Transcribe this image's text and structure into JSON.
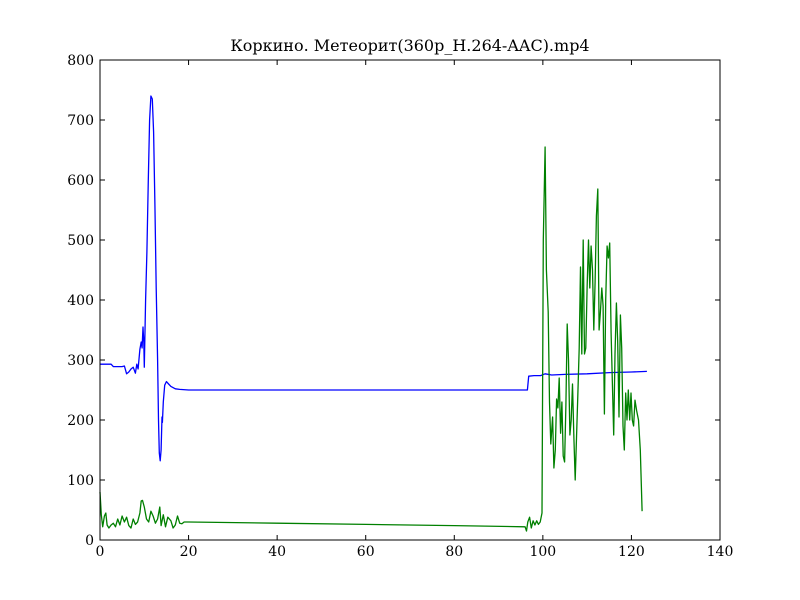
{
  "chart_data": {
    "type": "line",
    "title": "Коркино. Метеорит(360p_H.264-AAC).mp4",
    "xlabel": "",
    "ylabel": "",
    "xlim": [
      0,
      140
    ],
    "ylim": [
      0,
      800
    ],
    "x_ticks": [
      0,
      20,
      40,
      60,
      80,
      100,
      120,
      140
    ],
    "y_ticks": [
      0,
      100,
      200,
      300,
      400,
      500,
      600,
      700,
      800
    ],
    "grid": false,
    "legend": "none",
    "series": [
      {
        "color": "#0000ff",
        "points": [
          [
            0,
            293
          ],
          [
            2.5,
            293
          ],
          [
            3,
            289
          ],
          [
            5,
            289
          ],
          [
            5.5,
            290
          ],
          [
            6,
            277
          ],
          [
            6.5,
            280
          ],
          [
            7,
            285
          ],
          [
            7.5,
            288
          ],
          [
            8,
            278
          ],
          [
            8.3,
            293
          ],
          [
            8.6,
            285
          ],
          [
            9,
            318
          ],
          [
            9.3,
            330
          ],
          [
            9.5,
            320
          ],
          [
            9.7,
            355
          ],
          [
            9.9,
            330
          ],
          [
            10,
            288
          ],
          [
            10.3,
            400
          ],
          [
            10.6,
            480
          ],
          [
            10.9,
            600
          ],
          [
            11.2,
            700
          ],
          [
            11.5,
            740
          ],
          [
            11.8,
            735
          ],
          [
            12.1,
            680
          ],
          [
            12.4,
            560
          ],
          [
            12.7,
            420
          ],
          [
            13,
            300
          ],
          [
            13.2,
            200
          ],
          [
            13.4,
            145
          ],
          [
            13.6,
            132
          ],
          [
            13.8,
            150
          ],
          [
            14,
            205
          ],
          [
            14.1,
            196
          ],
          [
            14.3,
            230
          ],
          [
            14.6,
            258
          ],
          [
            15,
            264
          ],
          [
            15.5,
            260
          ],
          [
            16,
            256
          ],
          [
            17,
            252
          ],
          [
            18,
            251
          ],
          [
            20,
            250
          ],
          [
            40,
            250
          ],
          [
            60,
            250
          ],
          [
            80,
            250
          ],
          [
            96.5,
            250
          ],
          [
            96.8,
            273
          ],
          [
            98,
            274
          ],
          [
            99.5,
            274
          ],
          [
            100.5,
            277
          ],
          [
            102,
            275
          ],
          [
            105,
            276
          ],
          [
            110,
            277
          ],
          [
            115,
            279
          ],
          [
            120,
            280
          ],
          [
            123.5,
            281
          ]
        ]
      },
      {
        "color": "#008000",
        "points": [
          [
            0,
            80
          ],
          [
            0.3,
            42
          ],
          [
            0.6,
            22
          ],
          [
            1,
            40
          ],
          [
            1.3,
            45
          ],
          [
            1.6,
            25
          ],
          [
            2,
            20
          ],
          [
            2.5,
            25
          ],
          [
            3,
            28
          ],
          [
            3.5,
            22
          ],
          [
            4,
            35
          ],
          [
            4.5,
            25
          ],
          [
            5,
            40
          ],
          [
            5.5,
            30
          ],
          [
            6,
            38
          ],
          [
            6.5,
            24
          ],
          [
            7,
            20
          ],
          [
            7.5,
            35
          ],
          [
            8,
            26
          ],
          [
            8.5,
            30
          ],
          [
            9,
            45
          ],
          [
            9.3,
            65
          ],
          [
            9.6,
            66
          ],
          [
            10,
            55
          ],
          [
            10.5,
            35
          ],
          [
            11,
            30
          ],
          [
            11.5,
            48
          ],
          [
            12,
            40
          ],
          [
            12.5,
            28
          ],
          [
            13,
            35
          ],
          [
            13.5,
            55
          ],
          [
            13.8,
            24
          ],
          [
            14.3,
            42
          ],
          [
            14.8,
            22
          ],
          [
            15.3,
            38
          ],
          [
            16,
            32
          ],
          [
            16.5,
            20
          ],
          [
            17,
            25
          ],
          [
            17.5,
            40
          ],
          [
            18,
            28
          ],
          [
            18.5,
            27
          ],
          [
            19,
            30
          ],
          [
            20,
            30
          ],
          [
            40,
            28
          ],
          [
            60,
            26
          ],
          [
            80,
            24
          ],
          [
            96,
            22
          ],
          [
            96.3,
            15
          ],
          [
            96.6,
            30
          ],
          [
            97,
            38
          ],
          [
            97.4,
            20
          ],
          [
            97.8,
            32
          ],
          [
            98.2,
            25
          ],
          [
            98.6,
            32
          ],
          [
            99,
            26
          ],
          [
            99.4,
            30
          ],
          [
            99.8,
            45
          ],
          [
            100.1,
            500
          ],
          [
            100.5,
            655
          ],
          [
            100.8,
            450
          ],
          [
            101.2,
            380
          ],
          [
            101.5,
            230
          ],
          [
            101.8,
            160
          ],
          [
            102.2,
            205
          ],
          [
            102.5,
            120
          ],
          [
            102.8,
            150
          ],
          [
            103.1,
            235
          ],
          [
            103.4,
            220
          ],
          [
            103.7,
            270
          ],
          [
            104,
            178
          ],
          [
            104.3,
            230
          ],
          [
            104.6,
            140
          ],
          [
            104.9,
            130
          ],
          [
            105.2,
            225
          ],
          [
            105.5,
            360
          ],
          [
            105.8,
            300
          ],
          [
            106.1,
            175
          ],
          [
            106.4,
            200
          ],
          [
            106.7,
            260
          ],
          [
            107,
            170
          ],
          [
            107.3,
            100
          ],
          [
            107.6,
            170
          ],
          [
            107.9,
            240
          ],
          [
            108.2,
            320
          ],
          [
            108.5,
            455
          ],
          [
            108.8,
            310
          ],
          [
            109.1,
            500
          ],
          [
            109.4,
            310
          ],
          [
            109.7,
            320
          ],
          [
            110,
            420
          ],
          [
            110.3,
            500
          ],
          [
            110.6,
            420
          ],
          [
            110.9,
            490
          ],
          [
            111.2,
            450
          ],
          [
            111.5,
            350
          ],
          [
            111.8,
            430
          ],
          [
            112.1,
            540
          ],
          [
            112.4,
            585
          ],
          [
            112.7,
            350
          ],
          [
            113,
            380
          ],
          [
            113.3,
            420
          ],
          [
            113.6,
            390
          ],
          [
            113.9,
            210
          ],
          [
            114.2,
            400
          ],
          [
            114.5,
            490
          ],
          [
            114.8,
            470
          ],
          [
            115.1,
            495
          ],
          [
            115.4,
            345
          ],
          [
            115.7,
            260
          ],
          [
            116,
            175
          ],
          [
            116.3,
            310
          ],
          [
            116.6,
            395
          ],
          [
            116.9,
            330
          ],
          [
            117.2,
            205
          ],
          [
            117.5,
            375
          ],
          [
            117.8,
            320
          ],
          [
            118.1,
            190
          ],
          [
            118.4,
            150
          ],
          [
            118.7,
            245
          ],
          [
            119,
            200
          ],
          [
            119.3,
            250
          ],
          [
            119.6,
            200
          ],
          [
            119.9,
            245
          ],
          [
            120.2,
            200
          ],
          [
            120.5,
            190
          ],
          [
            120.8,
            233
          ],
          [
            121.2,
            215
          ],
          [
            121.6,
            200
          ],
          [
            122,
            150
          ],
          [
            122.4,
            48
          ]
        ]
      }
    ]
  }
}
